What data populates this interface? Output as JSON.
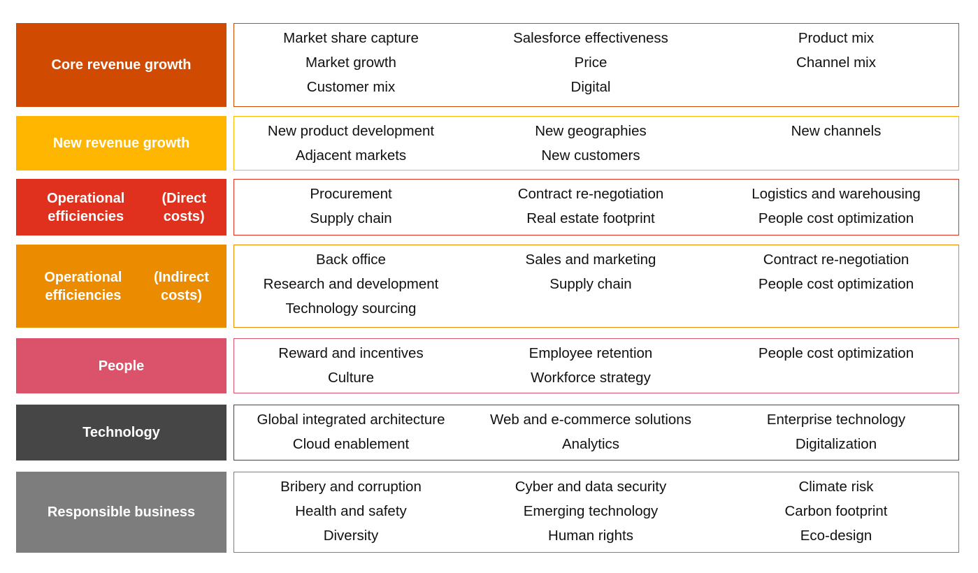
{
  "colors": {
    "core": "#d04a02",
    "new": "#ffb600",
    "direct": "#e0301e",
    "indirect": "#eb8c00",
    "people": "#db536a",
    "technology": "#464646",
    "responsible": "#7d7d7d"
  },
  "rows": [
    {
      "label": "Core revenue growth",
      "label_lines": [
        "Core revenue growth"
      ],
      "columns": [
        [
          "Market share capture",
          "Market growth",
          "Customer mix"
        ],
        [
          "Salesforce effectiveness",
          "Price",
          "Digital"
        ],
        [
          "Product mix",
          "Channel mix"
        ]
      ]
    },
    {
      "label": "New revenue growth",
      "label_lines": [
        "New revenue growth"
      ],
      "columns": [
        [
          "New product development",
          "Adjacent markets"
        ],
        [
          "New geographies",
          "New customers"
        ],
        [
          "New channels"
        ]
      ]
    },
    {
      "label": "Operational efficiencies (Direct costs)",
      "label_lines": [
        "Operational efficiencies",
        "(Direct costs)"
      ],
      "columns": [
        [
          "Procurement",
          "Supply chain"
        ],
        [
          "Contract re-negotiation",
          "Real estate footprint"
        ],
        [
          "Logistics and warehousing",
          "People cost optimization"
        ]
      ]
    },
    {
      "label": "Operational efficiencies (Indirect costs)",
      "label_lines": [
        "Operational efficiencies",
        "(Indirect costs)"
      ],
      "columns": [
        [
          "Back office",
          "Research and development",
          "Technology sourcing"
        ],
        [
          "Sales and marketing",
          "Supply chain"
        ],
        [
          "Contract re-negotiation",
          "People cost optimization"
        ]
      ]
    },
    {
      "label": "People",
      "label_lines": [
        "People"
      ],
      "columns": [
        [
          "Reward and incentives",
          "Culture"
        ],
        [
          "Employee retention",
          "Workforce strategy"
        ],
        [
          "People cost optimization"
        ]
      ]
    },
    {
      "label": "Technology",
      "label_lines": [
        "Technology"
      ],
      "columns": [
        [
          "Global integrated architecture",
          "Cloud enablement"
        ],
        [
          "Web and e-commerce solutions",
          "Analytics"
        ],
        [
          "Enterprise technology",
          "Digitalization"
        ]
      ]
    },
    {
      "label": "Responsible business",
      "label_lines": [
        "Responsible business"
      ],
      "columns": [
        [
          "Bribery and corruption",
          "Health and safety",
          "Diversity"
        ],
        [
          "Cyber and data security",
          "Emerging technology",
          "Human rights"
        ],
        [
          "Climate risk",
          "Carbon footprint",
          "Eco-design"
        ]
      ]
    }
  ]
}
